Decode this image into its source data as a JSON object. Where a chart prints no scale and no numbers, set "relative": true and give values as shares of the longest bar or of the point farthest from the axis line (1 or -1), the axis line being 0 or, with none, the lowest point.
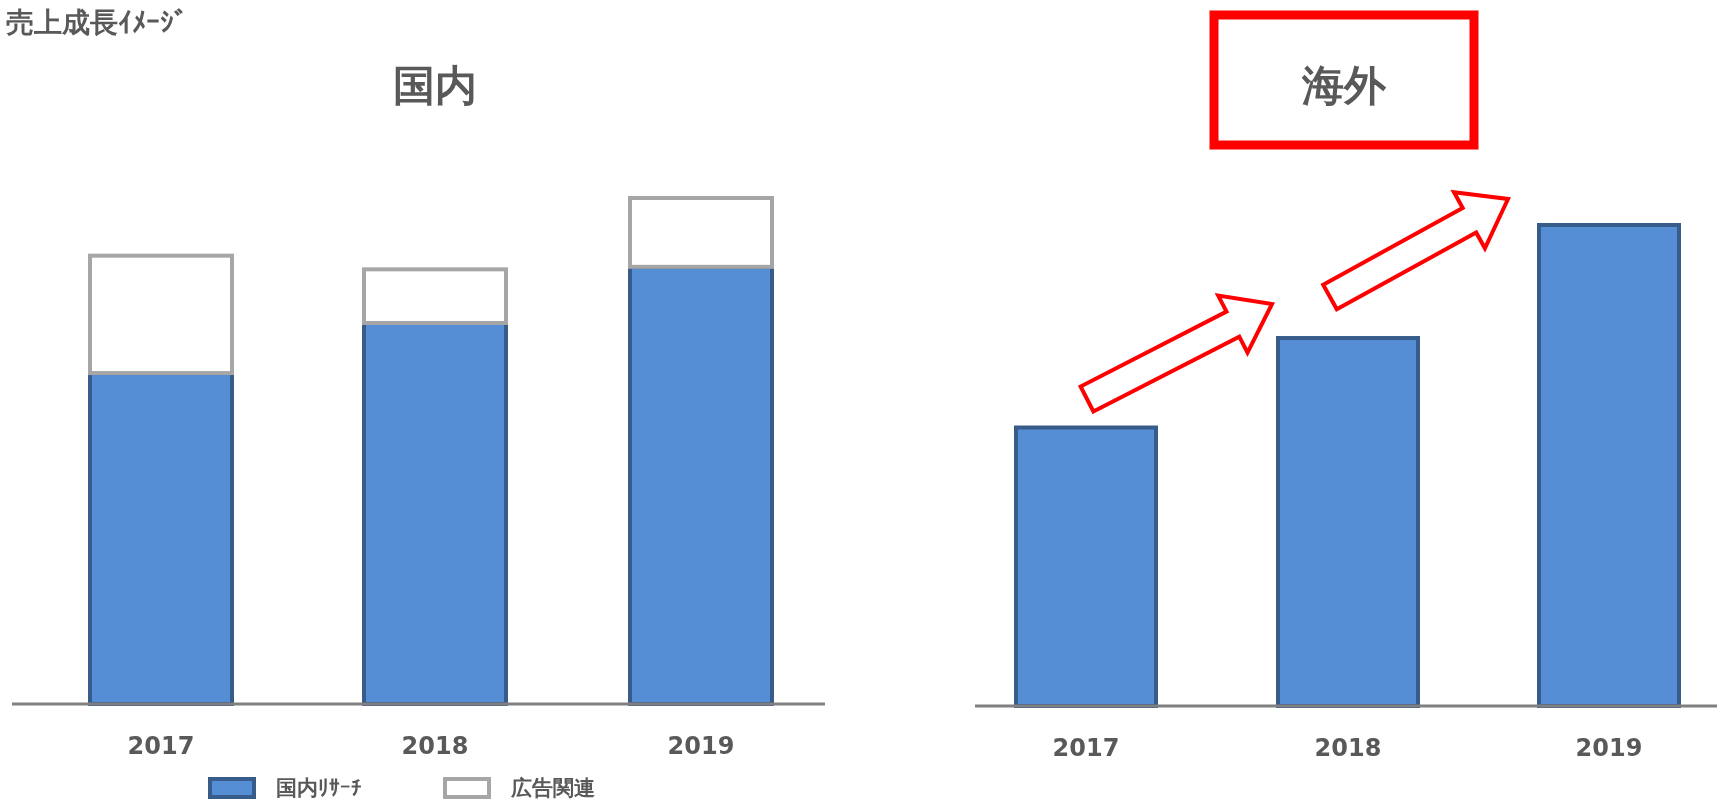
{
  "chart_data": [
    {
      "type": "bar",
      "title": "国内",
      "annotations": [
        "売上成長ｲﾒｰｼﾞ"
      ],
      "categories": [
        "2017",
        "2018",
        "2019"
      ],
      "stacked": true,
      "relative": true,
      "legend": "bottom",
      "series": [
        {
          "name": "国内ﾘｻｰﾁ",
          "color": "#558ed5",
          "values": [
            0.654,
            0.753,
            0.864
          ]
        },
        {
          "name": "広告関連",
          "color": "#ffffff",
          "values": [
            0.232,
            0.106,
            0.136
          ]
        }
      ]
    },
    {
      "type": "bar",
      "title": "海外",
      "categories": [
        "2017",
        "2018",
        "2019"
      ],
      "relative": true,
      "series": [
        {
          "color": "#558ed5",
          "values": [
            0.579,
            0.765,
            1
          ]
        }
      ]
    }
  ]
}
